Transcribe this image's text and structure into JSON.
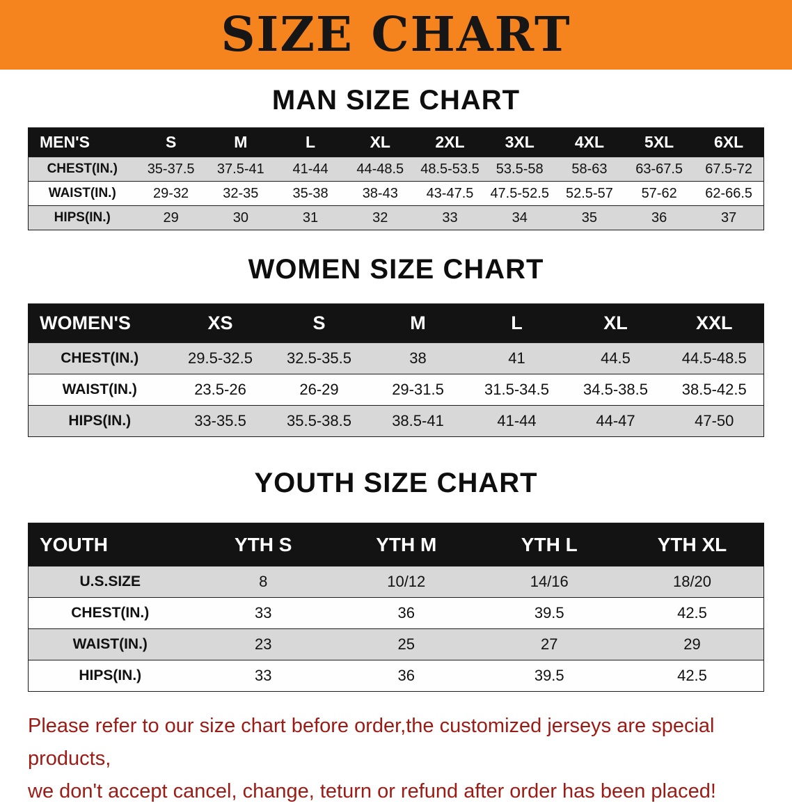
{
  "banner": {
    "title": "SIZE CHART",
    "background_color": "#f5831e",
    "title_color": "#161616"
  },
  "sections": [
    {
      "id": "men",
      "heading": "MAN SIZE CHART",
      "table": {
        "header": [
          "MEN'S",
          "S",
          "M",
          "L",
          "XL",
          "2XL",
          "3XL",
          "4XL",
          "5XL",
          "6XL"
        ],
        "rows": [
          [
            "CHEST(IN.)",
            "35-37.5",
            "37.5-41",
            "41-44",
            "44-48.5",
            "48.5-53.5",
            "53.5-58",
            "58-63",
            "63-67.5",
            "67.5-72"
          ],
          [
            "WAIST(IN.)",
            "29-32",
            "32-35",
            "35-38",
            "38-43",
            "43-47.5",
            "47.5-52.5",
            "52.5-57",
            "57-62",
            "62-66.5"
          ],
          [
            "HIPS(IN.)",
            "29",
            "30",
            "31",
            "32",
            "33",
            "34",
            "35",
            "36",
            "37"
          ]
        ]
      }
    },
    {
      "id": "women",
      "heading": "WOMEN SIZE CHART",
      "table": {
        "header": [
          "WOMEN'S",
          "XS",
          "S",
          "M",
          "L",
          "XL",
          "XXL"
        ],
        "rows": [
          [
            "CHEST(IN.)",
            "29.5-32.5",
            "32.5-35.5",
            "38",
            "41",
            "44.5",
            "44.5-48.5"
          ],
          [
            "WAIST(IN.)",
            "23.5-26",
            "26-29",
            "29-31.5",
            "31.5-34.5",
            "34.5-38.5",
            "38.5-42.5"
          ],
          [
            "HIPS(IN.)",
            "33-35.5",
            "35.5-38.5",
            "38.5-41",
            "41-44",
            "44-47",
            "47-50"
          ]
        ]
      }
    },
    {
      "id": "youth",
      "heading": "YOUTH SIZE CHART",
      "table": {
        "header": [
          "YOUTH",
          "YTH S",
          "YTH M",
          "YTH L",
          "YTH XL"
        ],
        "rows": [
          [
            "U.S.SIZE",
            "8",
            "10/12",
            "14/16",
            "18/20"
          ],
          [
            "CHEST(IN.)",
            "33",
            "36",
            "39.5",
            "42.5"
          ],
          [
            "WAIST(IN.)",
            "23",
            "25",
            "27",
            "29"
          ],
          [
            "HIPS(IN.)",
            "33",
            "36",
            "39.5",
            "42.5"
          ]
        ]
      }
    }
  ],
  "footer": {
    "line1": "Please refer to our size chart before order,the customized jerseys are special products,",
    "line2": "we don't accept cancel, change, teturn or refund after order has been placed!",
    "text_color": "#9d1a15"
  }
}
